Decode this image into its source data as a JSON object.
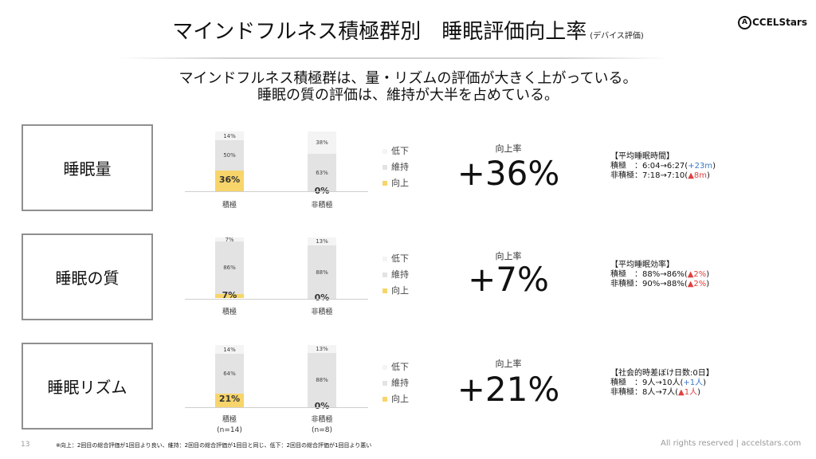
{
  "header": {
    "title": "マインドフルネス積極群別　睡眠評価向上率",
    "subtitle": "(デバイス評価)",
    "logo": "CCELStars",
    "logo_mark": "A"
  },
  "summary": {
    "line1": "マインドフルネス積極群は、量・リズムの評価が大きく上がっている。",
    "line2": "睡眠の質の評価は、維持が大半を占めている。"
  },
  "legend": {
    "down": "低下",
    "keep": "維持",
    "up": "向上"
  },
  "rate_label": "向上率",
  "rows": [
    {
      "name": "睡眠量",
      "rate": "+36%",
      "active": {
        "label": "積極",
        "down": "14%",
        "keep": "50%",
        "up": "36%",
        "down_v": 14,
        "keep_v": 50,
        "up_v": 36
      },
      "inactive": {
        "label": "非積極",
        "down": "38%",
        "keep": "63%",
        "up": "0%",
        "down_v": 38,
        "keep_v": 63,
        "up_v": 0
      },
      "note": {
        "head": "【平均睡眠時間】",
        "l1a": "積極　：6:04→6:27(",
        "l1b": "+23m",
        "l1c": ")",
        "l2a": "非積極：7:18→7:10(",
        "l2b": "▲8m",
        "l2c": ")"
      }
    },
    {
      "name": "睡眠の質",
      "rate": "+7%",
      "active": {
        "label": "積極",
        "down": "7%",
        "keep": "86%",
        "up": "7%",
        "down_v": 7,
        "keep_v": 86,
        "up_v": 7
      },
      "inactive": {
        "label": "非積極",
        "down": "13%",
        "keep": "88%",
        "up": "0%",
        "down_v": 13,
        "keep_v": 88,
        "up_v": 0
      },
      "note": {
        "head": "【平均睡眠効率】",
        "l1a": "積極　：88%→86%(",
        "l1b": "▲2%",
        "l1c": ")",
        "l2a": "非積極：90%→88%(",
        "l2b": "▲2%",
        "l2c": ")"
      }
    },
    {
      "name": "睡眠リズム",
      "rate": "+21%",
      "active": {
        "label": "積極",
        "n": "(n=14)",
        "down": "14%",
        "keep": "64%",
        "up": "21%",
        "down_v": 14,
        "keep_v": 64,
        "up_v": 21
      },
      "inactive": {
        "label": "非積極",
        "n": "(n=8)",
        "down": "13%",
        "keep": "88%",
        "up": "0%",
        "down_v": 13,
        "keep_v": 88,
        "up_v": 0
      },
      "note": {
        "head": "【社会的時差ぼけ日数:0日】",
        "l1a": "積極　：9人→10人(",
        "l1b": "+1人",
        "l1c": ")",
        "l2a": "非積極：8人→7人(",
        "l2b": "▲1人",
        "l2c": ")"
      }
    }
  ],
  "footer": {
    "page": "13",
    "note": "※向上：2回目の総合評価が1回目より良い、維持：2回目の総合評価が1回目と同じ、低下：2回目の総合評価が1回目より悪い",
    "copyright": "All rights reserved | accelstars.com"
  },
  "colors": {
    "up": "#f7d56a",
    "keep": "#e3e3e3",
    "down": "#f4f4f4",
    "positive": "#3a78c8",
    "negative": "#e04040"
  }
}
